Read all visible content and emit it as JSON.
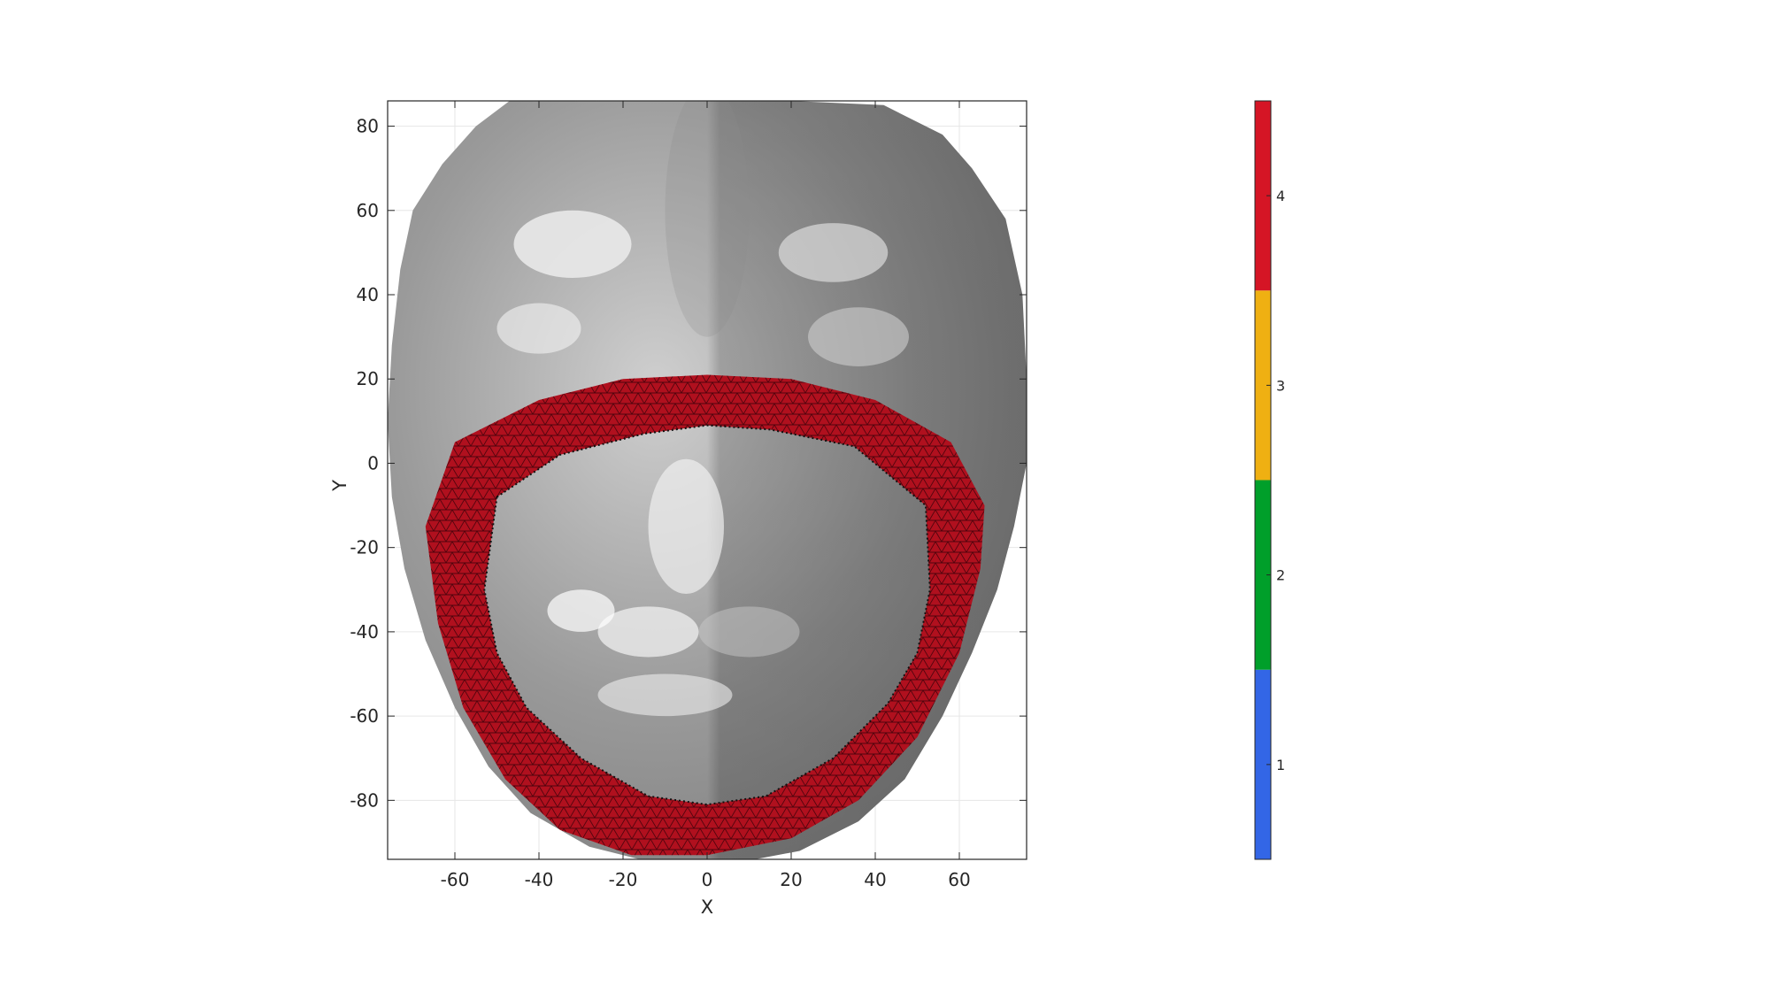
{
  "chart_data": {
    "type": "heatmap",
    "title": "",
    "xlabel": "X",
    "ylabel": "Y",
    "xlim": [
      -76,
      76
    ],
    "ylim": [
      -94,
      86
    ],
    "xticks": [
      -60,
      -40,
      -20,
      0,
      20,
      40,
      60
    ],
    "yticks": [
      80,
      60,
      40,
      20,
      0,
      -20,
      -40,
      -60,
      -80
    ],
    "grid": true,
    "colorbar": {
      "levels": [
        1,
        2,
        3,
        4
      ],
      "labels": [
        "1",
        "2",
        "3",
        "4"
      ],
      "colors": [
        "#3366e6",
        "#009f2a",
        "#efb012",
        "#d51525"
      ],
      "range": [
        0.5,
        4.5
      ]
    },
    "highlighted_region": {
      "value": 4,
      "color": "#b0101e"
    }
  }
}
